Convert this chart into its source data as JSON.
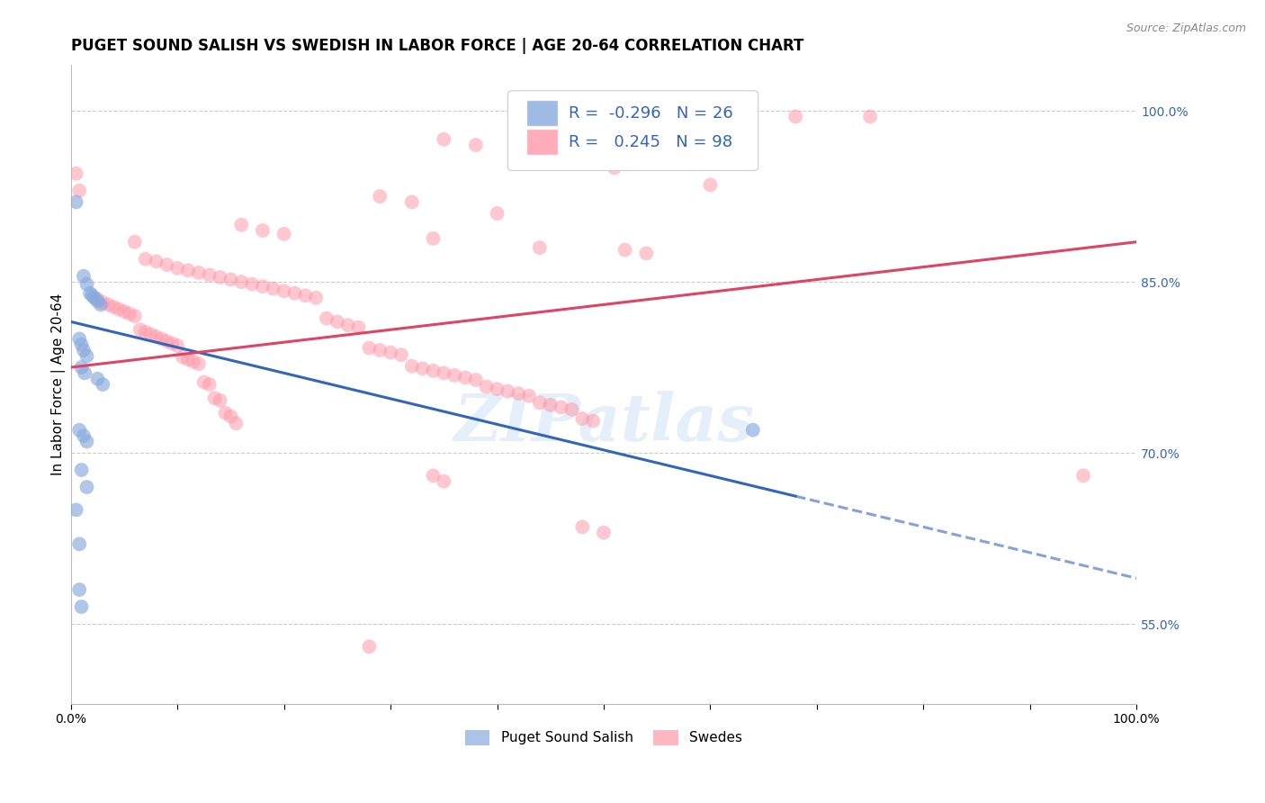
{
  "title": "PUGET SOUND SALISH VS SWEDISH IN LABOR FORCE | AGE 20-64 CORRELATION CHART",
  "source": "Source: ZipAtlas.com",
  "ylabel": "In Labor Force | Age 20-64",
  "right_yticks": [
    0.55,
    0.7,
    0.85,
    1.0
  ],
  "right_yticklabels": [
    "55.0%",
    "70.0%",
    "85.0%",
    "100.0%"
  ],
  "xticks": [
    0.0,
    0.1,
    0.2,
    0.3,
    0.4,
    0.5,
    0.6,
    0.7,
    0.8,
    0.9,
    1.0
  ],
  "xticklabels": [
    "0.0%",
    "",
    "",
    "",
    "",
    "",
    "",
    "",
    "",
    "",
    "100.0%"
  ],
  "xlim": [
    0.0,
    1.0
  ],
  "ylim": [
    0.48,
    1.04
  ],
  "grid_color": "#cccccc",
  "background_color": "#ffffff",
  "watermark": "ZIPatlas",
  "legend_R1": "-0.296",
  "legend_N1": "26",
  "legend_R2": "0.245",
  "legend_N2": "98",
  "blue_color": "#88aadd",
  "pink_color": "#ff99aa",
  "blue_scatter": [
    [
      0.005,
      0.92
    ],
    [
      0.012,
      0.855
    ],
    [
      0.015,
      0.848
    ],
    [
      0.018,
      0.84
    ],
    [
      0.02,
      0.838
    ],
    [
      0.022,
      0.836
    ],
    [
      0.025,
      0.833
    ],
    [
      0.028,
      0.83
    ],
    [
      0.008,
      0.8
    ],
    [
      0.01,
      0.795
    ],
    [
      0.012,
      0.79
    ],
    [
      0.015,
      0.785
    ],
    [
      0.01,
      0.775
    ],
    [
      0.013,
      0.77
    ],
    [
      0.025,
      0.765
    ],
    [
      0.03,
      0.76
    ],
    [
      0.008,
      0.72
    ],
    [
      0.012,
      0.715
    ],
    [
      0.015,
      0.71
    ],
    [
      0.01,
      0.685
    ],
    [
      0.015,
      0.67
    ],
    [
      0.005,
      0.65
    ],
    [
      0.008,
      0.62
    ],
    [
      0.64,
      0.72
    ],
    [
      0.008,
      0.58
    ],
    [
      0.01,
      0.565
    ]
  ],
  "pink_scatter": [
    [
      0.68,
      0.995
    ],
    [
      0.75,
      0.995
    ],
    [
      0.35,
      0.975
    ],
    [
      0.38,
      0.97
    ],
    [
      0.55,
      0.96
    ],
    [
      0.46,
      0.955
    ],
    [
      0.51,
      0.95
    ],
    [
      0.005,
      0.945
    ],
    [
      0.6,
      0.935
    ],
    [
      0.008,
      0.93
    ],
    [
      0.29,
      0.925
    ],
    [
      0.32,
      0.92
    ],
    [
      0.4,
      0.91
    ],
    [
      0.16,
      0.9
    ],
    [
      0.18,
      0.895
    ],
    [
      0.2,
      0.892
    ],
    [
      0.34,
      0.888
    ],
    [
      0.06,
      0.885
    ],
    [
      0.44,
      0.88
    ],
    [
      0.52,
      0.878
    ],
    [
      0.54,
      0.875
    ],
    [
      0.07,
      0.87
    ],
    [
      0.08,
      0.868
    ],
    [
      0.09,
      0.865
    ],
    [
      0.1,
      0.862
    ],
    [
      0.11,
      0.86
    ],
    [
      0.12,
      0.858
    ],
    [
      0.13,
      0.856
    ],
    [
      0.14,
      0.854
    ],
    [
      0.15,
      0.852
    ],
    [
      0.16,
      0.85
    ],
    [
      0.17,
      0.848
    ],
    [
      0.18,
      0.846
    ],
    [
      0.19,
      0.844
    ],
    [
      0.2,
      0.842
    ],
    [
      0.21,
      0.84
    ],
    [
      0.22,
      0.838
    ],
    [
      0.23,
      0.836
    ],
    [
      0.025,
      0.835
    ],
    [
      0.03,
      0.832
    ],
    [
      0.035,
      0.83
    ],
    [
      0.04,
      0.828
    ],
    [
      0.045,
      0.826
    ],
    [
      0.05,
      0.824
    ],
    [
      0.055,
      0.822
    ],
    [
      0.06,
      0.82
    ],
    [
      0.24,
      0.818
    ],
    [
      0.25,
      0.815
    ],
    [
      0.26,
      0.812
    ],
    [
      0.27,
      0.81
    ],
    [
      0.065,
      0.808
    ],
    [
      0.07,
      0.806
    ],
    [
      0.075,
      0.804
    ],
    [
      0.08,
      0.802
    ],
    [
      0.085,
      0.8
    ],
    [
      0.09,
      0.798
    ],
    [
      0.095,
      0.796
    ],
    [
      0.1,
      0.794
    ],
    [
      0.28,
      0.792
    ],
    [
      0.29,
      0.79
    ],
    [
      0.3,
      0.788
    ],
    [
      0.31,
      0.786
    ],
    [
      0.105,
      0.784
    ],
    [
      0.11,
      0.782
    ],
    [
      0.115,
      0.78
    ],
    [
      0.12,
      0.778
    ],
    [
      0.32,
      0.776
    ],
    [
      0.33,
      0.774
    ],
    [
      0.34,
      0.772
    ],
    [
      0.35,
      0.77
    ],
    [
      0.36,
      0.768
    ],
    [
      0.37,
      0.766
    ],
    [
      0.38,
      0.764
    ],
    [
      0.125,
      0.762
    ],
    [
      0.13,
      0.76
    ],
    [
      0.39,
      0.758
    ],
    [
      0.4,
      0.756
    ],
    [
      0.41,
      0.754
    ],
    [
      0.42,
      0.752
    ],
    [
      0.43,
      0.75
    ],
    [
      0.135,
      0.748
    ],
    [
      0.14,
      0.746
    ],
    [
      0.44,
      0.744
    ],
    [
      0.45,
      0.742
    ],
    [
      0.46,
      0.74
    ],
    [
      0.47,
      0.738
    ],
    [
      0.145,
      0.735
    ],
    [
      0.15,
      0.732
    ],
    [
      0.48,
      0.73
    ],
    [
      0.49,
      0.728
    ],
    [
      0.155,
      0.726
    ],
    [
      0.34,
      0.68
    ],
    [
      0.35,
      0.675
    ],
    [
      0.95,
      0.68
    ],
    [
      0.48,
      0.635
    ],
    [
      0.5,
      0.63
    ],
    [
      0.28,
      0.53
    ]
  ],
  "blue_line_x": [
    0.0,
    1.0
  ],
  "blue_line_y_start": 0.815,
  "blue_line_y_end": 0.59,
  "blue_line_solid_end": 0.68,
  "pink_line_x": [
    0.0,
    1.0
  ],
  "pink_line_y_start": 0.775,
  "pink_line_y_end": 0.885,
  "line_blue": "#3366bb",
  "line_pink": "#dd4466",
  "title_fontsize": 12,
  "axis_label_fontsize": 11,
  "tick_fontsize": 10,
  "legend_fontsize": 13,
  "right_axis_color": "#3366bb"
}
